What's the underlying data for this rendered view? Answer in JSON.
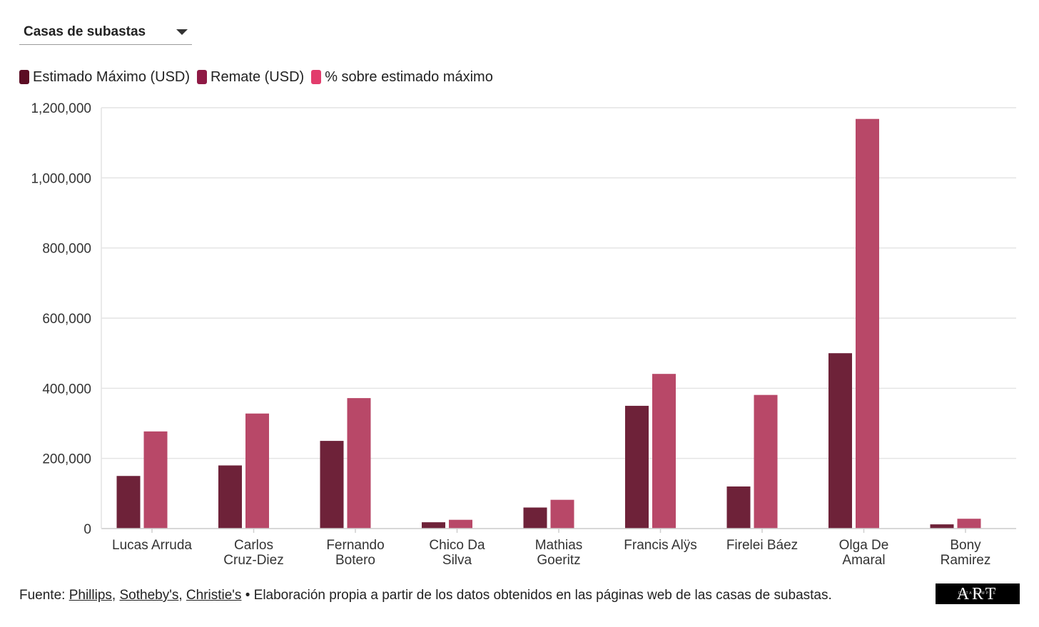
{
  "dropdown": {
    "label": "Casas de subastas"
  },
  "legend": [
    {
      "label": "Estimado Máximo (USD)",
      "color": "#5c0d24"
    },
    {
      "label": "Remate (USD)",
      "color": "#8f1a45"
    },
    {
      "label": "% sobre estimado máximo",
      "color": "#e23c6c"
    }
  ],
  "chart_data": {
    "type": "bar",
    "categories": [
      [
        "Lucas Arruda"
      ],
      [
        "Carlos",
        "Cruz-Diez"
      ],
      [
        "Fernando",
        "Botero"
      ],
      [
        "Chico Da",
        "Silva"
      ],
      [
        "Mathias",
        "Goeritz"
      ],
      [
        "Francis Alÿs"
      ],
      [
        "Firelei Báez"
      ],
      [
        "Olga De",
        "Amaral"
      ],
      [
        "Bony",
        "Ramirez"
      ]
    ],
    "series": [
      {
        "name": "Estimado Máximo (USD)",
        "color": "#6e2239",
        "values": [
          150000,
          180000,
          250000,
          18000,
          60000,
          350000,
          120000,
          500000,
          12000
        ]
      },
      {
        "name": "Remate (USD)",
        "color": "#b84868",
        "values": [
          277000,
          328000,
          372000,
          25000,
          82000,
          441000,
          381000,
          1168000,
          28000
        ]
      }
    ],
    "ylim": [
      0,
      1200000
    ],
    "yticks": [
      "0",
      "200,000",
      "400,000",
      "600,000",
      "800,000",
      "1,000,000",
      "1,200,000"
    ],
    "ytick_values": [
      0,
      200000,
      400000,
      600000,
      800000,
      1000000,
      1200000
    ],
    "grid": true,
    "legend_position": "top-left"
  },
  "footer": {
    "prefix": "Fuente: ",
    "links": [
      "Phillips",
      "Sotheby's",
      "Christie's"
    ],
    "separator": ", ",
    "suffix": " • Elaboración propia a partir de los datos obtenidos en las páginas web de las casas de subastas."
  },
  "logo": {
    "text": "ART",
    "subtext": "DATA SIMPLE"
  }
}
